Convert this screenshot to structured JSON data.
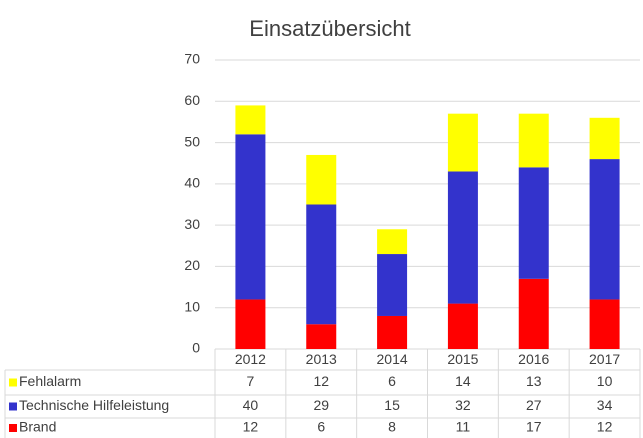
{
  "chart_data": {
    "type": "stacked_bar",
    "title": "Einsatzübersicht",
    "categories": [
      "2012",
      "2013",
      "2014",
      "2015",
      "2016",
      "2017"
    ],
    "series": [
      {
        "name": "Brand",
        "color": "#ff0000",
        "values": [
          12,
          6,
          8,
          11,
          17,
          12
        ]
      },
      {
        "name": "Technische Hilfeleistung",
        "color": "#3333cc",
        "values": [
          40,
          29,
          15,
          32,
          27,
          34
        ]
      },
      {
        "name": "Fehlalarm",
        "color": "#ffff00",
        "values": [
          7,
          12,
          6,
          14,
          13,
          10
        ]
      }
    ],
    "ylim": [
      0,
      70
    ],
    "yticks": [
      0,
      10,
      20,
      30,
      40,
      50,
      60,
      70
    ],
    "grid": true,
    "data_table": true
  }
}
